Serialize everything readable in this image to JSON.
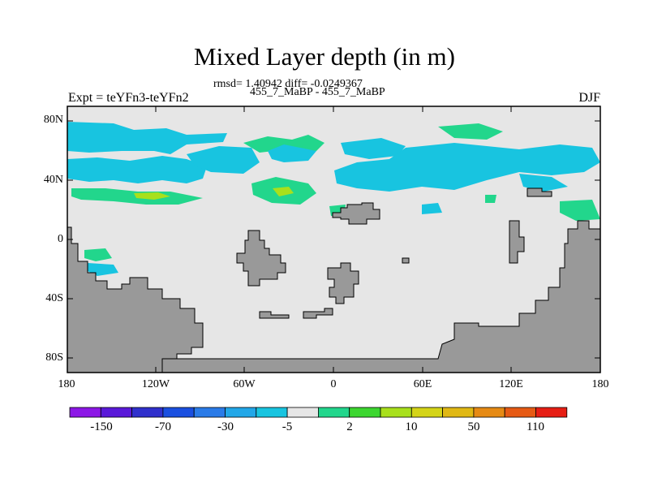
{
  "map": {
    "title": "Mixed Layer depth (in m)",
    "stats_line": "rmsd= 1.40942 diff= -0.0249367",
    "comparison_line": "455_7_MaBP - 455_7_MaBP",
    "experiment_label": "Expt = teYFn3-teYFn2",
    "season": "DJF",
    "lat_ticks": [
      "80N",
      "40N",
      "0",
      "40S",
      "80S"
    ],
    "lon_ticks": [
      "180",
      "120W",
      "60W",
      "0",
      "60E",
      "120E",
      "180"
    ]
  },
  "colorbar": {
    "colors": [
      "#8c17e6",
      "#5a19d9",
      "#3030cc",
      "#1a4fe0",
      "#2a7be8",
      "#22a7e8",
      "#18c4e0",
      "#e6e6e6",
      "#22d68c",
      "#3cd630",
      "#a8e01c",
      "#d4d418",
      "#e0b814",
      "#e68a14",
      "#e65a14",
      "#e61e14"
    ],
    "labels": [
      "-150",
      "-70",
      "-30",
      "-5",
      "2",
      "10",
      "50",
      "110"
    ]
  },
  "colors": {
    "land": "#999999",
    "ocean_background": "#e6e6e6",
    "negative_anomaly": "#22a7e8",
    "positive_anomaly": "#22d68c",
    "strong_positive": "#a8e01c"
  }
}
